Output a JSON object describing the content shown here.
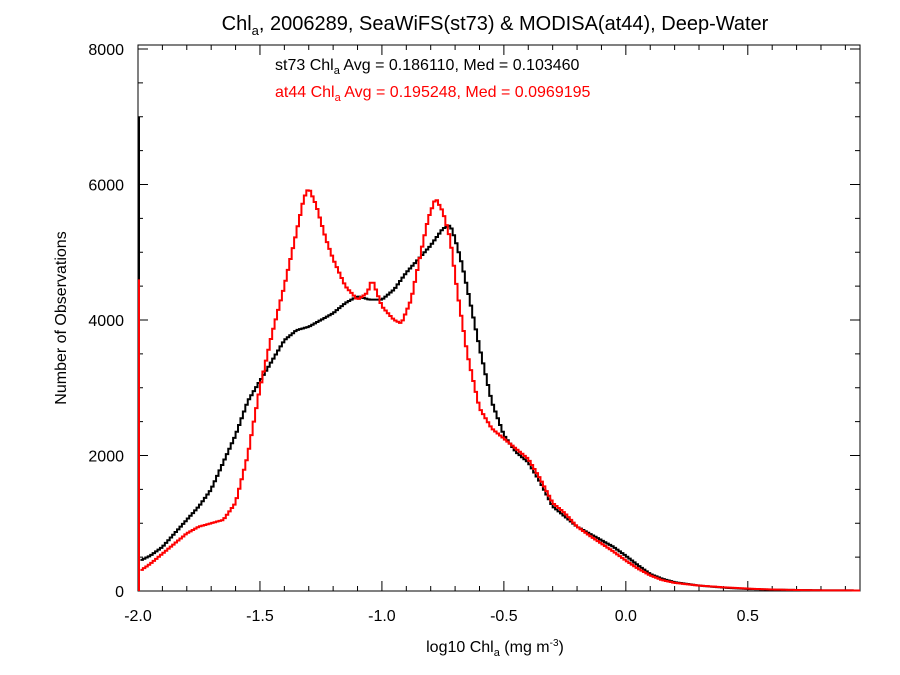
{
  "chart_data": {
    "type": "line",
    "step": true,
    "title": {
      "main": "Chl",
      "sub": "a",
      "rest": ", 2006289, SeaWiFS(st73) & MODISA(at44), Deep-Water"
    },
    "xlabel": {
      "main": "log10 Chl",
      "sub": "a",
      "mid": " (mg m",
      "sup": "-3",
      "end": ")"
    },
    "ylabel": "Number of Observations",
    "xlim": [
      -2.0,
      0.96
    ],
    "ylim": [
      0,
      8000
    ],
    "x_ticks": [
      -2.0,
      -1.5,
      -1.0,
      -0.5,
      0.0,
      0.5
    ],
    "x_tick_labels": [
      "-2.0",
      "-1.5",
      "-1.0",
      "-0.5",
      "0.0",
      "0.5"
    ],
    "y_ticks": [
      0,
      2000,
      4000,
      6000,
      8000
    ],
    "y_tick_labels": [
      "0",
      "2000",
      "4000",
      "6000",
      "8000"
    ],
    "grid": false,
    "annotations": [
      {
        "prefix": "st73 Chl",
        "sub": "a",
        "suffix": " Avg = 0.186110, Med = 0.103460",
        "color": "#000000"
      },
      {
        "prefix": "at44 Chl",
        "sub": "a",
        "suffix": " Avg = 0.195248, Med = 0.0969195",
        "color": "#ff0000"
      }
    ],
    "series": [
      {
        "name": "st73",
        "color": "#000000",
        "spike": {
          "x": -2.0,
          "y": 7000
        },
        "points": [
          [
            -1.99,
            450
          ],
          [
            -1.95,
            520
          ],
          [
            -1.9,
            650
          ],
          [
            -1.85,
            850
          ],
          [
            -1.8,
            1050
          ],
          [
            -1.75,
            1250
          ],
          [
            -1.7,
            1500
          ],
          [
            -1.65,
            1900
          ],
          [
            -1.6,
            2300
          ],
          [
            -1.55,
            2800
          ],
          [
            -1.5,
            3100
          ],
          [
            -1.45,
            3400
          ],
          [
            -1.4,
            3700
          ],
          [
            -1.35,
            3850
          ],
          [
            -1.3,
            3900
          ],
          [
            -1.25,
            4000
          ],
          [
            -1.2,
            4100
          ],
          [
            -1.15,
            4250
          ],
          [
            -1.1,
            4350
          ],
          [
            -1.05,
            4300
          ],
          [
            -1.0,
            4300
          ],
          [
            -0.95,
            4450
          ],
          [
            -0.9,
            4700
          ],
          [
            -0.85,
            4900
          ],
          [
            -0.8,
            5100
          ],
          [
            -0.75,
            5350
          ],
          [
            -0.72,
            5400
          ],
          [
            -0.7,
            5200
          ],
          [
            -0.67,
            4800
          ],
          [
            -0.64,
            4300
          ],
          [
            -0.6,
            3600
          ],
          [
            -0.55,
            2800
          ],
          [
            -0.5,
            2300
          ],
          [
            -0.45,
            2050
          ],
          [
            -0.4,
            1900
          ],
          [
            -0.35,
            1600
          ],
          [
            -0.3,
            1250
          ],
          [
            -0.25,
            1100
          ],
          [
            -0.2,
            950
          ],
          [
            -0.15,
            850
          ],
          [
            -0.1,
            750
          ],
          [
            -0.05,
            650
          ],
          [
            0.0,
            520
          ],
          [
            0.05,
            380
          ],
          [
            0.1,
            250
          ],
          [
            0.15,
            180
          ],
          [
            0.2,
            130
          ],
          [
            0.3,
            80
          ],
          [
            0.4,
            50
          ],
          [
            0.5,
            30
          ],
          [
            0.6,
            20
          ],
          [
            0.7,
            15
          ],
          [
            0.8,
            10
          ],
          [
            0.96,
            8
          ]
        ]
      },
      {
        "name": "at44",
        "color": "#ff0000",
        "spike": {
          "x": -2.0,
          "y": 4600
        },
        "points": [
          [
            -1.99,
            300
          ],
          [
            -1.95,
            400
          ],
          [
            -1.9,
            550
          ],
          [
            -1.85,
            700
          ],
          [
            -1.8,
            850
          ],
          [
            -1.75,
            950
          ],
          [
            -1.7,
            1000
          ],
          [
            -1.65,
            1050
          ],
          [
            -1.6,
            1300
          ],
          [
            -1.55,
            2000
          ],
          [
            -1.5,
            3000
          ],
          [
            -1.45,
            3800
          ],
          [
            -1.4,
            4500
          ],
          [
            -1.35,
            5300
          ],
          [
            -1.32,
            5800
          ],
          [
            -1.3,
            5950
          ],
          [
            -1.27,
            5700
          ],
          [
            -1.23,
            5200
          ],
          [
            -1.2,
            4900
          ],
          [
            -1.15,
            4500
          ],
          [
            -1.1,
            4300
          ],
          [
            -1.06,
            4400
          ],
          [
            -1.04,
            4600
          ],
          [
            -1.0,
            4200
          ],
          [
            -0.95,
            4000
          ],
          [
            -0.92,
            3950
          ],
          [
            -0.88,
            4300
          ],
          [
            -0.84,
            5000
          ],
          [
            -0.81,
            5500
          ],
          [
            -0.78,
            5800
          ],
          [
            -0.75,
            5600
          ],
          [
            -0.72,
            5200
          ],
          [
            -0.69,
            4400
          ],
          [
            -0.65,
            3500
          ],
          [
            -0.6,
            2700
          ],
          [
            -0.55,
            2400
          ],
          [
            -0.5,
            2250
          ],
          [
            -0.45,
            2100
          ],
          [
            -0.4,
            1950
          ],
          [
            -0.35,
            1650
          ],
          [
            -0.3,
            1300
          ],
          [
            -0.25,
            1150
          ],
          [
            -0.2,
            950
          ],
          [
            -0.15,
            820
          ],
          [
            -0.1,
            700
          ],
          [
            -0.05,
            580
          ],
          [
            0.0,
            450
          ],
          [
            0.05,
            330
          ],
          [
            0.1,
            230
          ],
          [
            0.15,
            160
          ],
          [
            0.2,
            120
          ],
          [
            0.3,
            80
          ],
          [
            0.4,
            55
          ],
          [
            0.5,
            35
          ],
          [
            0.6,
            22
          ],
          [
            0.7,
            15
          ],
          [
            0.8,
            10
          ],
          [
            0.96,
            8
          ]
        ]
      }
    ]
  }
}
